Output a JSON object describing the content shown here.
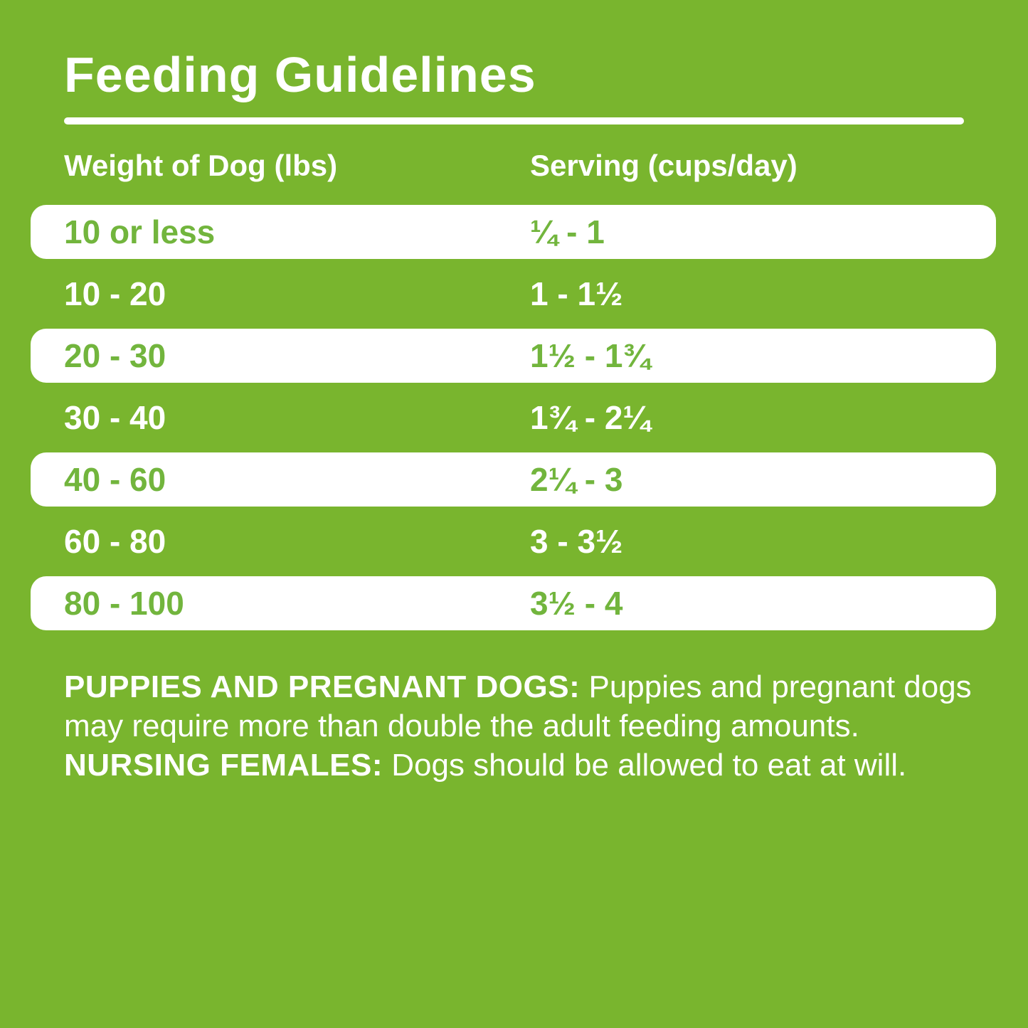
{
  "page": {
    "title": "Feeding Guidelines"
  },
  "table": {
    "columns": {
      "weight": "Weight of Dog (lbs)",
      "serving": "Serving (cups/day)"
    },
    "rows": [
      {
        "weight": "10 or less",
        "serving": "¼ - 1"
      },
      {
        "weight": "10 - 20",
        "serving": "1 - 1½"
      },
      {
        "weight": "20 - 30",
        "serving": "1½ - 1¾"
      },
      {
        "weight": "30 - 40",
        "serving": "1¾ - 2¼"
      },
      {
        "weight": "40 - 60",
        "serving": "2¼ - 3"
      },
      {
        "weight": "60 - 80",
        "serving": "3 - 3½"
      },
      {
        "weight": "80 - 100",
        "serving": "3½ - 4"
      }
    ]
  },
  "footnote": {
    "puppies_label": "PUPPIES AND PREGNANT DOGS:",
    "puppies_text": "Puppies and pregnant dogs may require more than double the adult feeding amounts.",
    "nursing_label": "NURSING FEMALES:",
    "nursing_text": "Dogs should be allowed to eat at will."
  },
  "colors": {
    "background_green": "#79b52e",
    "row_white": "#ffffff",
    "row_text_green": "#72b53d",
    "text_white": "#ffffff"
  }
}
